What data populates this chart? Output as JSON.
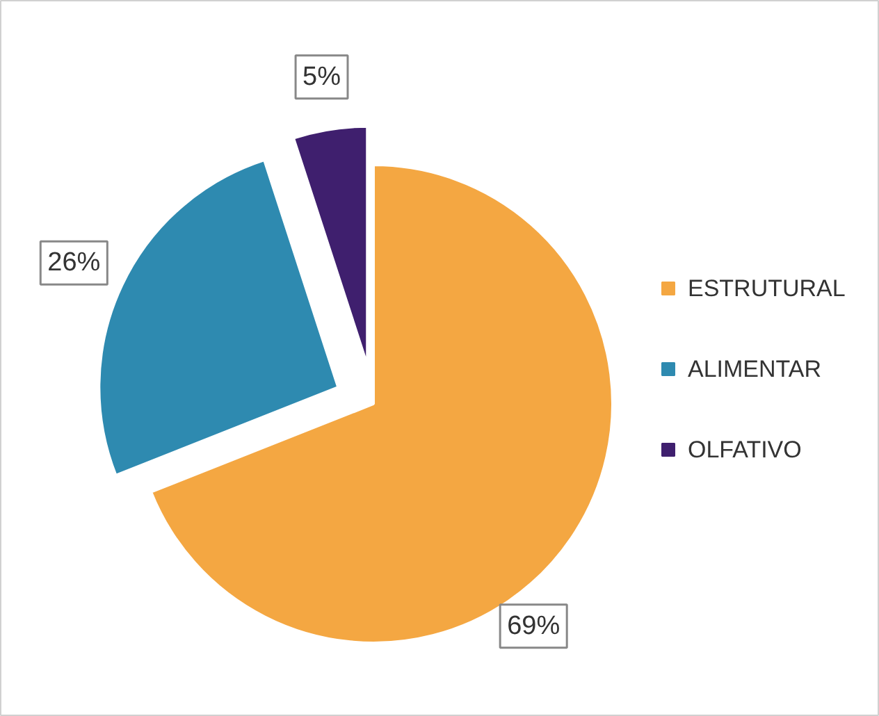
{
  "chart_data": {
    "type": "pie",
    "categories": [
      "ESTRUTURAL",
      "ALIMENTAR",
      "OLFATIVO"
    ],
    "values": [
      69,
      26,
      5
    ],
    "colors": [
      "#f4a742",
      "#2e8ab0",
      "#3f1f6e"
    ],
    "value_labels": [
      "69%",
      "26%",
      "5%"
    ],
    "legend": "right"
  }
}
